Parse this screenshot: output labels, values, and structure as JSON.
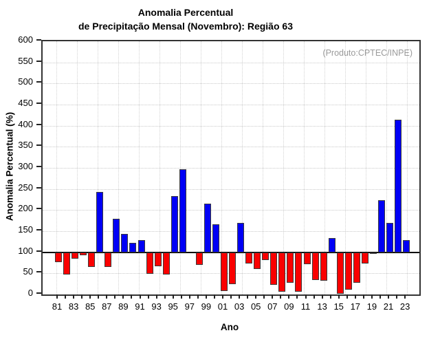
{
  "title": {
    "line1": "Anomalia Percentual",
    "line2": "de Precipitação Mensal (Novembro): Região 63"
  },
  "source_note": "(Produto:CPTEC/INPE)",
  "chart_data": {
    "type": "bar",
    "title": "Anomalia Percentual de Precipitação Mensal (Novembro): Região 63",
    "xlabel": "Ano",
    "ylabel": "Anomalia Percentual (%)",
    "ylim": [
      0,
      600
    ],
    "ytick_step": 50,
    "baseline": 100,
    "grid": "dotted",
    "legend_position": "none",
    "annotation": "(Produto:CPTEC/INPE)",
    "colors": {
      "above_baseline": "#0000f5",
      "below_baseline": "#fa0000",
      "bar_outline": "#3a3a3a"
    },
    "categories": [
      "81",
      "82",
      "83",
      "84",
      "85",
      "86",
      "87",
      "88",
      "89",
      "90",
      "91",
      "92",
      "93",
      "94",
      "95",
      "96",
      "97",
      "98",
      "99",
      "00",
      "01",
      "02",
      "03",
      "04",
      "05",
      "06",
      "07",
      "08",
      "09",
      "10",
      "11",
      "12",
      "13",
      "14",
      "15",
      "16",
      "17",
      "18",
      "19",
      "20",
      "21",
      "22",
      "23"
    ],
    "x_tick_labels": [
      "81",
      "83",
      "85",
      "87",
      "89",
      "91",
      "93",
      "95",
      "97",
      "99",
      "01",
      "03",
      "05",
      "07",
      "09",
      "11",
      "13",
      "15",
      "17",
      "19",
      "21",
      "23"
    ],
    "values": [
      76,
      48,
      84,
      93,
      66,
      243,
      65,
      180,
      143,
      123,
      129,
      49,
      67,
      47,
      233,
      297,
      100,
      70,
      215,
      166,
      8,
      25,
      169,
      74,
      60,
      81,
      22,
      6,
      27,
      7,
      72,
      35,
      32,
      133,
      2,
      11,
      27,
      74,
      96,
      223,
      170,
      414,
      128
    ]
  }
}
